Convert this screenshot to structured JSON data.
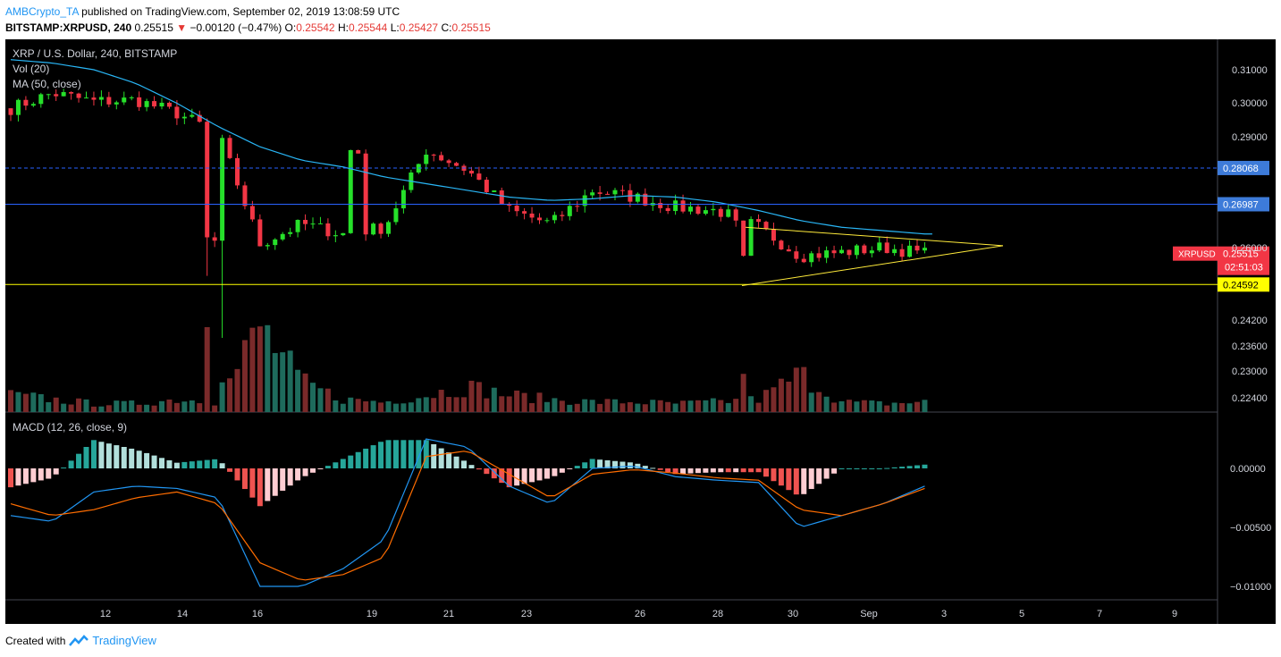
{
  "header": {
    "author": "AMBCrypto_TA",
    "published": "published on TradingView.com, September 02, 2019 13:08:59 UTC",
    "symbol": "BITSTAMP:XRPUSD, 240",
    "last": "0.25515",
    "arrow": "▼",
    "change": "−0.00120 (−0.47%)",
    "o_label": "O:",
    "o": "0.25542",
    "h_label": "H:",
    "h": "0.25544",
    "l_label": "L:",
    "l": "0.25427",
    "c_label": "C:",
    "c": "0.25515"
  },
  "legend": {
    "title": "XRP / U.S. Dollar, 240, BITSTAMP",
    "vol": "Vol (20)",
    "ma": "MA (50, close)",
    "macd": "MACD (12, 26, close, 9)"
  },
  "footer": {
    "created": "Created with",
    "brand": "TradingView"
  },
  "chart_data": {
    "type": "candlestick",
    "price_ticks": [
      "0.31000",
      "0.30000",
      "0.29000",
      "0.26000",
      "0.24200",
      "0.23600",
      "0.23000",
      "0.22400"
    ],
    "macd_ticks": [
      "0.00000",
      "−0.00500",
      "−0.01000"
    ],
    "x_ticks": [
      "12",
      "14",
      "16",
      "19",
      "21",
      "23",
      "26",
      "28",
      "30",
      "Sep",
      "3",
      "5",
      "7",
      "9"
    ],
    "levels": [
      {
        "value": 0.28068,
        "label": "0.28068",
        "style": "dashed",
        "color": "#2962ff"
      },
      {
        "value": 0.26987,
        "label": "0.26987",
        "style": "solid",
        "color": "#2962ff"
      },
      {
        "value": 0.24592,
        "label": "0.24592",
        "style": "solid",
        "color": "#ffff00"
      }
    ],
    "price_tag": {
      "symbol": "XRPUSD",
      "value": "0.25515",
      "countdown": "02:51:03"
    },
    "triangle": {
      "top_start": 0.263,
      "bottom_start": 0.2456,
      "apex": 0.2575
    },
    "ohlc_anchors": [
      [
        0.299,
        0.2985
      ],
      [
        0.302,
        0.303
      ],
      [
        0.3015,
        0.3005
      ],
      [
        0.3,
        0.301
      ],
      [
        0.298,
        0.297
      ],
      [
        0.294,
        0.291
      ],
      [
        0.26,
        0.258
      ],
      [
        0.262,
        0.264
      ],
      [
        0.26,
        0.261
      ],
      [
        0.262,
        0.263
      ],
      [
        0.282,
        0.286
      ],
      [
        0.284,
        0.28
      ],
      [
        0.272,
        0.268
      ],
      [
        0.262,
        0.264
      ],
      [
        0.268,
        0.274
      ],
      [
        0.274,
        0.272
      ],
      [
        0.27,
        0.269
      ],
      [
        0.27,
        0.268
      ],
      [
        0.265,
        0.263
      ],
      [
        0.254,
        0.2545
      ],
      [
        0.256,
        0.2555
      ],
      [
        0.2565,
        0.257
      ],
      [
        0.256,
        0.2552
      ]
    ],
    "ma_values": [
      0.313,
      0.312,
      0.31,
      0.306,
      0.3,
      0.293,
      0.287,
      0.283,
      0.281,
      0.278,
      0.276,
      0.274,
      0.272,
      0.271,
      0.2715,
      0.2725,
      0.272,
      0.2705,
      0.268,
      0.265,
      0.263,
      0.262,
      0.261
    ],
    "volume_values": [
      0.2,
      0.15,
      0.1,
      0.1,
      0.15,
      0.12,
      1.0,
      0.35,
      0.15,
      0.12,
      0.2,
      0.3,
      0.2,
      0.15,
      0.12,
      0.12,
      0.1,
      0.12,
      0.15,
      0.45,
      0.12,
      0.1,
      0.12
    ],
    "macd_line": [
      -0.004,
      -0.0045,
      -0.002,
      -0.0015,
      -0.0017,
      -0.0025,
      -0.01,
      -0.01,
      -0.0085,
      -0.006,
      0.0025,
      0.0018,
      -0.0015,
      -0.003,
      0.0,
      0.0002,
      -0.0007,
      -0.001,
      -0.0012,
      -0.005,
      -0.004,
      -0.003,
      -0.0015
    ],
    "signal_line": [
      -0.003,
      -0.004,
      -0.0035,
      -0.0025,
      -0.002,
      -0.003,
      -0.008,
      -0.0095,
      -0.009,
      -0.0075,
      0.001,
      0.0015,
      -0.0005,
      -0.0025,
      -0.0005,
      -0.0001,
      -0.0004,
      -0.0008,
      -0.001,
      -0.0035,
      -0.004,
      -0.003,
      -0.0017
    ]
  }
}
